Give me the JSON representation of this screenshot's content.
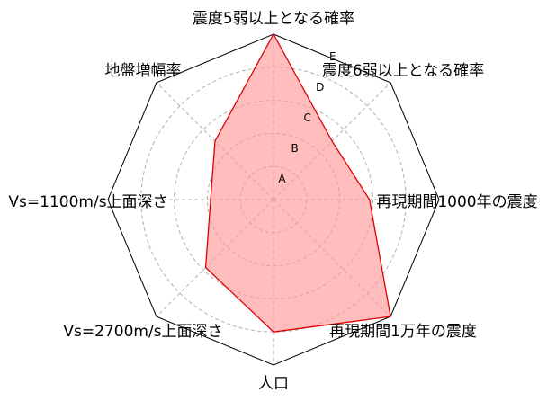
{
  "chart_data": {
    "type": "radar",
    "axes": [
      "震度5弱以上となる確率",
      "震度6弱以上となる確率",
      "再現期間1000年の震度",
      "再現期間1万年の震度",
      "人口",
      "Vs=2700m/s上面深さ",
      "Vs=1100m/s上面深さ",
      "地盤増幅率"
    ],
    "tick_labels": [
      "A",
      "B",
      "C",
      "D",
      "E"
    ],
    "levels": 5,
    "values": [
      5,
      2.5,
      2.9,
      5,
      4,
      2.9,
      1.9,
      2.5
    ],
    "series_color": "#e00000",
    "fill_color": "#ff9999",
    "grid": true
  }
}
